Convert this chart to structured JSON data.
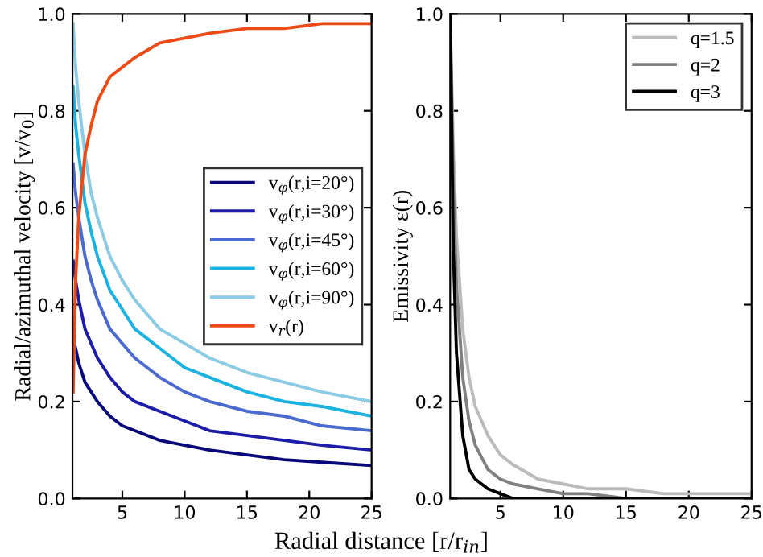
{
  "chart_data": [
    {
      "type": "line",
      "xlabel": "Radial distance [r/r$_{in}$]",
      "ylabel": "Radial/azimuthal velocity [v/v$_{0}$]",
      "x": [
        1.05,
        1.25,
        1.5,
        2,
        2.5,
        3,
        4,
        5,
        6,
        8,
        10,
        12,
        15,
        18,
        21,
        25
      ],
      "xlim": [
        1,
        25
      ],
      "xticks": [
        5,
        10,
        15,
        20,
        25
      ],
      "ylim": [
        0,
        1
      ],
      "yticks": [
        {
          "value": 0,
          "label": "0.0"
        },
        {
          "value": 0.2,
          "label": "0.2"
        },
        {
          "value": 0.4,
          "label": "0.4"
        },
        {
          "value": 0.6,
          "label": "0.6"
        },
        {
          "value": 0.8,
          "label": "0.8"
        },
        {
          "value": 1,
          "label": "1.0"
        }
      ],
      "grid": false,
      "legend": "right",
      "line_style": "solid",
      "marker": "none",
      "series": [
        {
          "name": "v$_{φ}$(r,i=20°)",
          "color": "#07077a",
          "values": [
            0.33,
            0.31,
            0.28,
            0.24,
            0.22,
            0.2,
            0.17,
            0.15,
            0.14,
            0.12,
            0.11,
            0.1,
            0.09,
            0.08,
            0.075,
            0.068
          ]
        },
        {
          "name": "v$_{φ}$(r,i=30°)",
          "color": "#1c1ca8",
          "values": [
            0.49,
            0.45,
            0.41,
            0.35,
            0.32,
            0.29,
            0.25,
            0.22,
            0.2,
            0.18,
            0.16,
            0.14,
            0.13,
            0.12,
            0.11,
            0.1
          ]
        },
        {
          "name": "v$_{φ}$(r,i=45°)",
          "color": "#4a6ad0",
          "values": [
            0.69,
            0.63,
            0.58,
            0.5,
            0.45,
            0.41,
            0.35,
            0.32,
            0.29,
            0.25,
            0.22,
            0.2,
            0.18,
            0.17,
            0.15,
            0.14
          ]
        },
        {
          "name": "v$_{φ}$(r,i=60°)",
          "color": "#1ab2e0",
          "values": [
            0.85,
            0.77,
            0.71,
            0.61,
            0.55,
            0.5,
            0.43,
            0.39,
            0.35,
            0.31,
            0.27,
            0.25,
            0.22,
            0.2,
            0.19,
            0.17
          ]
        },
        {
          "name": "v$_{φ}$(r,i=90°)",
          "color": "#8ccbe4",
          "values": [
            0.98,
            0.89,
            0.82,
            0.71,
            0.63,
            0.58,
            0.5,
            0.45,
            0.41,
            0.35,
            0.32,
            0.29,
            0.26,
            0.24,
            0.22,
            0.2
          ]
        },
        {
          "name": "v$_{r}$(r)",
          "color": "#ee4a16",
          "values": [
            0.22,
            0.45,
            0.58,
            0.71,
            0.77,
            0.82,
            0.87,
            0.89,
            0.91,
            0.94,
            0.95,
            0.96,
            0.97,
            0.97,
            0.98,
            0.98
          ]
        }
      ]
    },
    {
      "type": "line",
      "ylabel": "Emissivity ε(r)",
      "x": [
        1,
        1.25,
        1.5,
        2,
        2.5,
        3,
        4,
        5,
        6,
        8,
        10,
        12,
        15,
        18,
        21,
        25
      ],
      "xlim": [
        1,
        25
      ],
      "xticks": [
        5,
        10,
        15,
        20,
        25
      ],
      "ylim": [
        0,
        1
      ],
      "yticks": [
        {
          "value": 0,
          "label": "0.0"
        },
        {
          "value": 0.2,
          "label": "0.2"
        },
        {
          "value": 0.4,
          "label": "0.4"
        },
        {
          "value": 0.6,
          "label": "0.6"
        },
        {
          "value": 0.8,
          "label": "0.8"
        },
        {
          "value": 1,
          "label": "1.0"
        }
      ],
      "grid": false,
      "legend": "upper right",
      "line_style": "solid",
      "marker": "none",
      "series": [
        {
          "name": "q=1.5",
          "color": "#bbbbbb",
          "values": [
            1.0,
            0.72,
            0.54,
            0.35,
            0.25,
            0.19,
            0.13,
            0.09,
            0.07,
            0.04,
            0.03,
            0.02,
            0.02,
            0.01,
            0.01,
            0.01
          ]
        },
        {
          "name": "q=2",
          "color": "#808080",
          "values": [
            1.0,
            0.64,
            0.44,
            0.25,
            0.16,
            0.11,
            0.06,
            0.04,
            0.03,
            0.02,
            0.01,
            0.01,
            0.0,
            0.0,
            0.0,
            0.0
          ]
        },
        {
          "name": "q=3",
          "color": "#000000",
          "values": [
            1.0,
            0.51,
            0.3,
            0.13,
            0.06,
            0.04,
            0.02,
            0.01,
            0.0,
            0.0,
            0.0,
            0.0,
            0.0,
            0.0,
            0.0,
            0.0
          ]
        }
      ]
    }
  ]
}
